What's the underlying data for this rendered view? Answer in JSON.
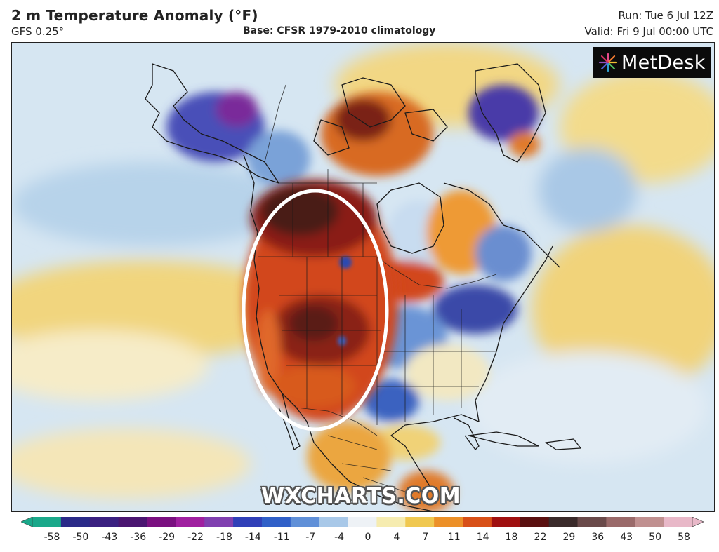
{
  "header": {
    "title": "2 m Temperature Anomaly (°F)",
    "model": "GFS 0.25°",
    "base": "Base: CFSR 1979-2010 climatology",
    "run": "Run: Tue 6 Jul 12Z",
    "valid": "Valid: Fri 9 Jul 00:00 UTC"
  },
  "logo": {
    "text": "MetDesk"
  },
  "watermark": "WXCHARTS.COM",
  "colorbar": {
    "ticks": [
      "-58",
      "-50",
      "-43",
      "-36",
      "-29",
      "-22",
      "-18",
      "-14",
      "-11",
      "-7",
      "-4",
      "0",
      "4",
      "7",
      "11",
      "14",
      "18",
      "22",
      "29",
      "36",
      "43",
      "50",
      "58"
    ],
    "colors": [
      "#1aa88a",
      "#2a2a88",
      "#3a2080",
      "#4a1570",
      "#7a1080",
      "#a020a0",
      "#8040b0",
      "#3040b8",
      "#3060c8",
      "#6090d8",
      "#a8c8e8",
      "#eef2f6",
      "#f6ecb0",
      "#f0c850",
      "#ec9028",
      "#d85018",
      "#a01010",
      "#5a1010",
      "#3a2a2a",
      "#6a4a4a",
      "#9a6a6a",
      "#c09090",
      "#e8b8c8"
    ]
  },
  "map": {
    "region": "North America",
    "highlight": "white ellipse over western North America",
    "colors": {
      "ocean_cool": "#cfe2f0",
      "ocean_warm": "#f3dc8a",
      "heat_core": "#5a1a12",
      "heat": "#c0361a",
      "warm": "#e88a2a",
      "cool": "#3b6bc4",
      "cold": "#3a2a9a"
    }
  }
}
